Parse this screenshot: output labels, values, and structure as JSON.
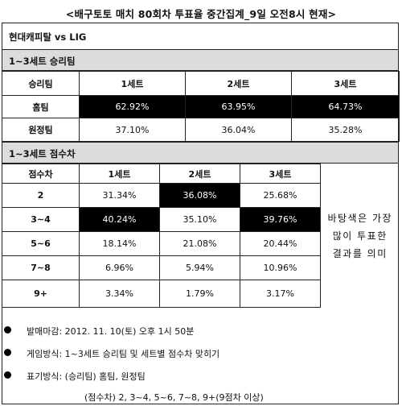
{
  "title": "<배구토토 매치 80회차 투표율 중간집계_9일 오전8시 현재>",
  "match": "현대캐피탈 vs LIG",
  "winner_section": {
    "heading": "1~3세트 승리팀",
    "columns": [
      "승리팀",
      "1세트",
      "2세트",
      "3세트"
    ],
    "rows": [
      {
        "label": "홈팀",
        "values": [
          "62.92%",
          "63.95%",
          "64.73%"
        ]
      },
      {
        "label": "원정팀",
        "values": [
          "37.10%",
          "36.04%",
          "35.28%"
        ]
      }
    ]
  },
  "margin_section": {
    "heading": "1~3세트 점수차",
    "columns": [
      "점수차",
      "1세트",
      "2세트",
      "3세트"
    ],
    "rows": [
      {
        "label": "2",
        "values": [
          "31.34%",
          "36.08%",
          "25.68%"
        ]
      },
      {
        "label": "3~4",
        "values": [
          "40.24%",
          "35.10%",
          "39.76%"
        ]
      },
      {
        "label": "5~6",
        "values": [
          "18.14%",
          "21.08%",
          "20.44%"
        ]
      },
      {
        "label": "7~8",
        "values": [
          "6.96%",
          "5.94%",
          "10.96%"
        ]
      },
      {
        "label": "9+",
        "values": [
          "3.34%",
          "1.79%",
          "3.17%"
        ]
      }
    ],
    "note": "바탕색은 가장 많이 투표한 결과를 의미"
  },
  "info": {
    "bullets": [
      "발매마감: 2012. 11. 10(토) 오후 1시 50분",
      "게임방식: 1~3세트 승리팀 및 세트별 점수차 맞히기",
      "표기방식: (승리팀) 홈팀, 원정팀"
    ],
    "footnote": "(점수차) 2, 3~4, 5~6, 7~8, 9+(9점차 이상)"
  },
  "colors": {
    "highlight": "#000000",
    "section_header_bg": "#dcdcdc"
  }
}
